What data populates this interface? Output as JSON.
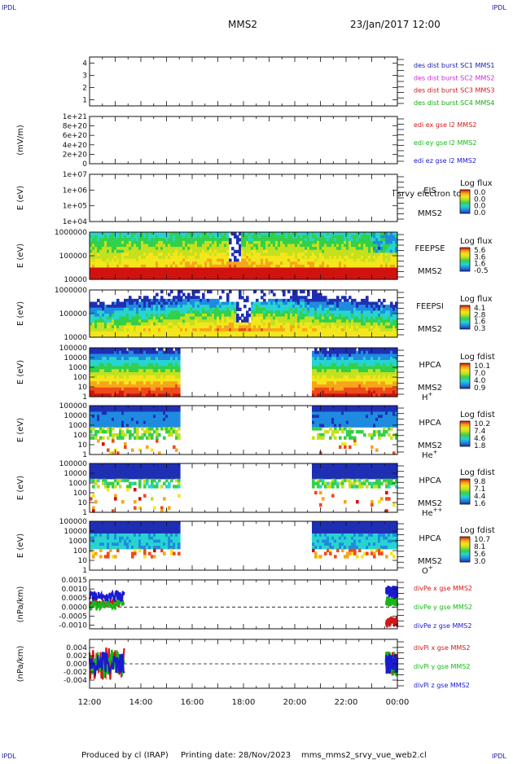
{
  "header": {
    "ipdl": "IPDL",
    "spacecraft": "MMS2",
    "datetime": "23/Jan/2017 12:00"
  },
  "footer": {
    "produced_by": "Produced by cl (IRAP)",
    "printing_date": "Printing date: 28/Nov/2023",
    "filename": "mms_mms2_srvy_vue_web2.cl"
  },
  "colors": {
    "spectrogram_palette": [
      "#1f2fb4",
      "#1f8be0",
      "#27d4d0",
      "#33d04a",
      "#c4e01e",
      "#f3e61a",
      "#f7a51b",
      "#ef4a1a",
      "#d0130f"
    ],
    "c1": "#1a1aa8",
    "c2": "#d026d0",
    "c3": "#d01818",
    "c4": "#16a816",
    "x": "#d01818",
    "y": "#16b816",
    "z": "#1a1ad0"
  },
  "chart_data": [
    {
      "type": "line",
      "id": "des-dist-burst",
      "ylim": [
        0.5,
        4.5
      ],
      "y_ticks": [
        "1",
        "2",
        "3",
        "4"
      ],
      "series": [
        {
          "name": "des dist burst SC1 MMS1",
          "color": "c1",
          "values": []
        },
        {
          "name": "des dist burst SC2 MMS2",
          "color": "c2",
          "values": []
        },
        {
          "name": "des dist burst SC3 MMS3",
          "color": "c3",
          "values": []
        },
        {
          "name": "des dist burst SC4 MMS4",
          "color": "c4",
          "values": []
        }
      ]
    },
    {
      "type": "line",
      "id": "edi-e",
      "ylabel": "(mV/m)",
      "ylim": [
        0,
        1e+21
      ],
      "y_ticks": [
        "0",
        "2e+20",
        "4e+20",
        "6e+20",
        "8e+20",
        "1e+21"
      ],
      "zero_line": true,
      "series": [
        {
          "name": "edi ex gse l2 MMS2",
          "color": "x",
          "values": []
        },
        {
          "name": "edi ey gse l2 MMS2",
          "color": "y",
          "values": []
        },
        {
          "name": "edi ez gse l2 MMS2",
          "color": "z",
          "values": []
        }
      ]
    },
    {
      "type": "heatmap",
      "id": "eis",
      "ylabel": "E (eV)",
      "y_ticks": [
        "1e+04",
        "1e+05",
        "1e+06",
        "1e+07"
      ],
      "instrument": [
        "EIS",
        "MMS2"
      ],
      "overlay_text": "l srvy electron to",
      "colorbar_label": "Log flux",
      "colorbar_ticks": [
        "0.0",
        "0.0",
        "0.0",
        "0.0"
      ],
      "empty": true
    },
    {
      "type": "heatmap",
      "id": "feeps-e",
      "ylabel": "E (eV)",
      "y_ticks": [
        "10000",
        "100000",
        "1000000"
      ],
      "instrument": [
        "FEEPSE",
        "MMS2"
      ],
      "colorbar_label": "Log flux",
      "colorbar_ticks": [
        "5.6",
        "3.6",
        "1.6",
        "-0.5"
      ],
      "pattern": "feepse",
      "coverage": [
        [
          0,
          12
        ]
      ]
    },
    {
      "type": "heatmap",
      "id": "feeps-i",
      "ylabel": "E (eV)",
      "y_ticks": [
        "10000",
        "100000",
        "1000000"
      ],
      "instrument": [
        "FEEPSI",
        "MMS2"
      ],
      "colorbar_label": "Log flux",
      "colorbar_ticks": [
        "4.1",
        "2.8",
        "1.6",
        "0.3"
      ],
      "pattern": "feepsi",
      "coverage": [
        [
          0,
          12
        ]
      ]
    },
    {
      "type": "heatmap",
      "id": "hpca-h",
      "ylabel": "E (eV)",
      "y_ticks": [
        "1",
        "10",
        "100",
        "1000",
        "10000",
        "100000"
      ],
      "instrument": [
        "HPCA",
        "MMS2"
      ],
      "species": "H",
      "species_sup": "+",
      "colorbar_label": "Log fdist",
      "colorbar_ticks": [
        "10.1",
        "7.0",
        "4.0",
        "0.9"
      ],
      "pattern": "hpca-h",
      "coverage": [
        [
          0,
          3.55
        ],
        [
          8.7,
          12
        ]
      ]
    },
    {
      "type": "heatmap",
      "id": "hpca-he",
      "ylabel": "E (eV)",
      "y_ticks": [
        "1",
        "10",
        "100",
        "1000",
        "10000",
        "100000"
      ],
      "instrument": [
        "HPCA",
        "MMS2"
      ],
      "species": "He",
      "species_sup": "+",
      "colorbar_label": "Log fdist",
      "colorbar_ticks": [
        "10.2",
        "7.4",
        "4.6",
        "1.8"
      ],
      "pattern": "hpca-he",
      "coverage": [
        [
          0,
          3.55
        ],
        [
          8.7,
          12
        ]
      ]
    },
    {
      "type": "heatmap",
      "id": "hpca-hepp",
      "ylabel": "E (eV)",
      "y_ticks": [
        "1",
        "10",
        "100",
        "1000",
        "10000",
        "100000"
      ],
      "instrument": [
        "HPCA",
        "MMS2"
      ],
      "species": "He",
      "species_sup": "++",
      "colorbar_label": "Log fdist",
      "colorbar_ticks": [
        "9.8",
        "7.1",
        "4.4",
        "1.6"
      ],
      "pattern": "hpca-hepp",
      "coverage": [
        [
          0,
          3.55
        ],
        [
          8.7,
          12
        ]
      ]
    },
    {
      "type": "heatmap",
      "id": "hpca-o",
      "ylabel": "E (eV)",
      "y_ticks": [
        "1",
        "10",
        "100",
        "1000",
        "10000",
        "100000"
      ],
      "instrument": [
        "HPCA",
        "MMS2"
      ],
      "species": "O",
      "species_sup": "+",
      "colorbar_label": "Log fdist",
      "colorbar_ticks": [
        "10.7",
        "8.1",
        "5.6",
        "3.0"
      ],
      "pattern": "hpca-o",
      "coverage": [
        [
          0,
          3.55
        ],
        [
          8.7,
          12
        ]
      ]
    },
    {
      "type": "line",
      "id": "divpe",
      "ylabel": "(nPa/km)",
      "ylim": [
        -0.0012,
        0.0015
      ],
      "y_ticks": [
        "-0.0010",
        "-0.0005",
        "0.0000",
        "0.0005",
        "0.0010",
        "0.0015"
      ],
      "y_tick_values": [
        -0.001,
        -0.0005,
        0,
        0.0005,
        0.001,
        0.0015
      ],
      "zero_line": true,
      "series": [
        {
          "name": "divPe x gse MMS2",
          "color": "x",
          "segments": [
            {
              "x": [
                0,
                1.35
              ],
              "level": 0.0002,
              "spread": 0.0002
            },
            {
              "x": [
                11.55,
                12
              ],
              "level": -0.0008,
              "spread": 0.0003
            }
          ]
        },
        {
          "name": "divPe y gse MMS2",
          "color": "y",
          "segments": [
            {
              "x": [
                0,
                1.35
              ],
              "level": 0.0001,
              "spread": 0.0003
            },
            {
              "x": [
                11.55,
                12
              ],
              "level": 0.0003,
              "spread": 0.0003
            }
          ]
        },
        {
          "name": "divPe z gse MMS2",
          "color": "z",
          "segments": [
            {
              "x": [
                0,
                1.35
              ],
              "level": 0.0006,
              "spread": 0.0003
            },
            {
              "x": [
                11.55,
                12
              ],
              "level": 0.0008,
              "spread": 0.0004
            }
          ]
        }
      ]
    },
    {
      "type": "line",
      "id": "divpi",
      "ylabel": "(nPa/km)",
      "ylim": [
        -0.006,
        0.006
      ],
      "y_ticks": [
        "-0.004",
        "-0.002",
        "0.000",
        "0.002",
        "0.004"
      ],
      "y_tick_values": [
        -0.004,
        -0.002,
        0,
        0.002,
        0.004
      ],
      "zero_line": true,
      "series": [
        {
          "name": "divPi x gse MMS2",
          "color": "x",
          "segments": [
            {
              "x": [
                0,
                1.35
              ],
              "level": 0,
              "spread": 0.004
            },
            {
              "x": [
                11.55,
                12
              ],
              "level": 0,
              "spread": 0.003
            }
          ]
        },
        {
          "name": "divPi y gse MMS2",
          "color": "y",
          "segments": [
            {
              "x": [
                0,
                1.35
              ],
              "level": 0,
              "spread": 0.0035
            },
            {
              "x": [
                11.55,
                12
              ],
              "level": 0,
              "spread": 0.003
            }
          ]
        },
        {
          "name": "divPi z gse MMS2",
          "color": "z",
          "segments": [
            {
              "x": [
                0,
                1.35
              ],
              "level": 0,
              "spread": 0.003
            },
            {
              "x": [
                11.55,
                12
              ],
              "level": 0,
              "spread": 0.0025
            }
          ]
        }
      ]
    }
  ],
  "x_axis": {
    "ticks": [
      "12:00",
      "14:00",
      "16:00",
      "18:00",
      "20:00",
      "22:00",
      "00:00"
    ],
    "xlim_hours": [
      0,
      12
    ]
  }
}
